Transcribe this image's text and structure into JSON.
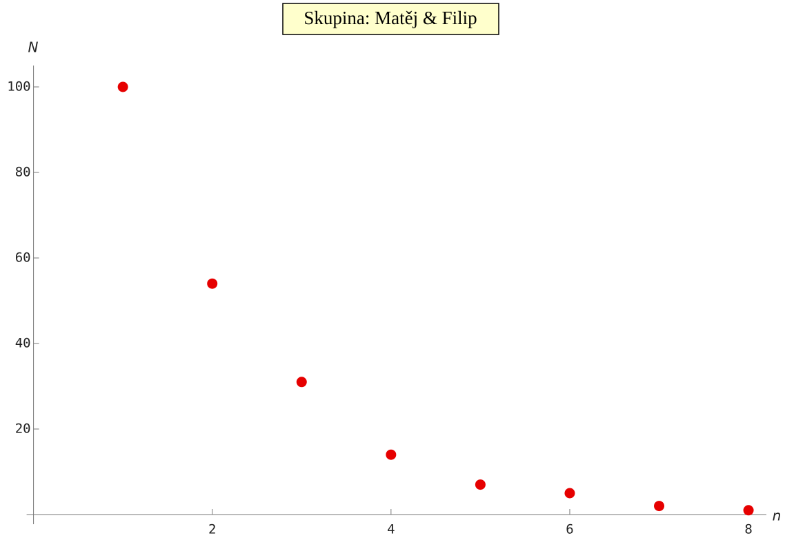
{
  "chart_data": {
    "type": "scatter",
    "title": "Skupina: Matěj & Filip",
    "x_label": "n",
    "y_label": "N",
    "x": [
      1,
      2,
      3,
      4,
      5,
      6,
      7,
      8
    ],
    "values": [
      100,
      54,
      31,
      14,
      7,
      5,
      2,
      1
    ],
    "color": "#e60000",
    "xlim": [
      0,
      8.2
    ],
    "ylim": [
      0,
      105
    ],
    "xticks": [
      2,
      4,
      6,
      8
    ],
    "yticks": [
      20,
      40,
      60,
      80,
      100
    ]
  }
}
